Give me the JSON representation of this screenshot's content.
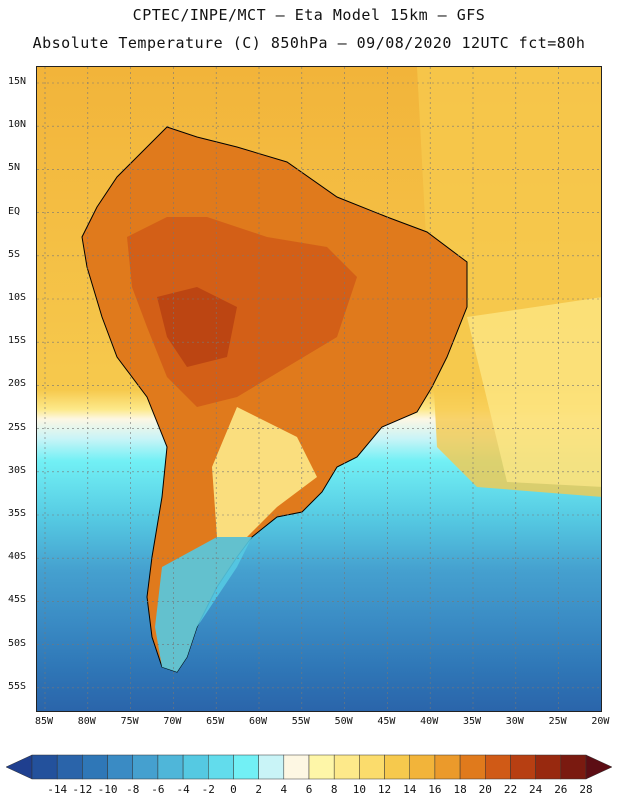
{
  "header": {
    "title": "CPTEC/INPE/MCT –  Eta Model 15km – GFS",
    "subtitle": "Absolute Temperature (C) 850hPa – 09/08/2020 12UTC fct=80h"
  },
  "map": {
    "lat_ticks": [
      "15N",
      "10N",
      "5N",
      "EQ",
      "5S",
      "10S",
      "15S",
      "20S",
      "25S",
      "30S",
      "35S",
      "40S",
      "45S",
      "50S",
      "55S"
    ],
    "lon_ticks": [
      "85W",
      "80W",
      "75W",
      "70W",
      "65W",
      "60W",
      "55W",
      "50W",
      "45W",
      "40W",
      "35W",
      "30W",
      "25W",
      "20W"
    ]
  },
  "colorbar": {
    "labels": [
      "-14",
      "-12",
      "-10",
      "-8",
      "-6",
      "-4",
      "-2",
      "0",
      "2",
      "4",
      "6",
      "8",
      "10",
      "12",
      "14",
      "16",
      "18",
      "20",
      "22",
      "24",
      "26",
      "28"
    ],
    "colors": [
      "#1f3f8f",
      "#23519c",
      "#2a64aa",
      "#2f77b7",
      "#3a8bc4",
      "#45a0cf",
      "#4fb6d9",
      "#55c9e2",
      "#62dcec",
      "#72f0f5",
      "#c9f4f7",
      "#fdf7e3",
      "#fef6a8",
      "#fde98a",
      "#fbdc6c",
      "#f6c94d",
      "#f2b43a",
      "#eb9a2b",
      "#e07a1c",
      "#d05a16",
      "#b73f12",
      "#98290f",
      "#7a1a10",
      "#5c0d14"
    ]
  }
}
